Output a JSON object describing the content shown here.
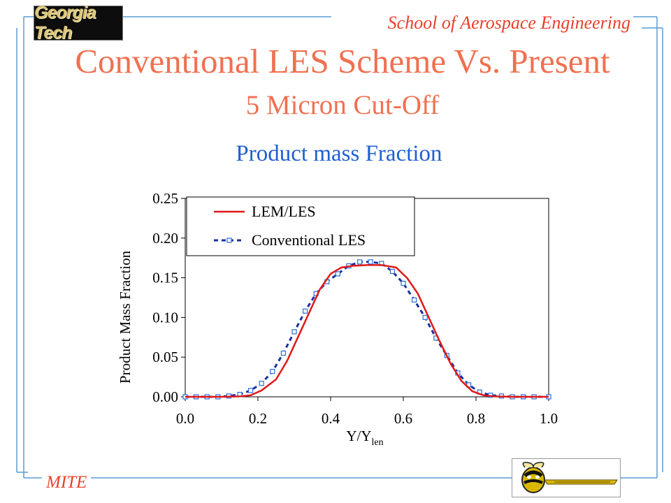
{
  "header": {
    "logo_text": "Georgia Tech",
    "school": "School of Aerospace Engineering"
  },
  "slide": {
    "title": "Conventional LES Scheme Vs. Present",
    "subtitle": "5 Micron Cut-Off",
    "chart_heading": "Product mass Fraction"
  },
  "footer": {
    "mite": "MITE",
    "mascot_icon": "yellow-jacket-logo"
  },
  "colors": {
    "accent": "#e8402a",
    "title": "#f07050",
    "heading_blue": "#1f5fd0",
    "frame_blue": "#5a9bd5",
    "series_lem": "#e01818",
    "series_conv": "#1a2fa0"
  },
  "chart_data": {
    "type": "line",
    "title": "Product mass Fraction",
    "xlabel": "Y/Y",
    "xlabel_sub": "len",
    "ylabel": "Product Mass Fraction",
    "xlim": [
      0,
      1
    ],
    "ylim": [
      0,
      0.25
    ],
    "x_ticks": [
      "0.0",
      "0.2",
      "0.4",
      "0.6",
      "0.8",
      "1.0"
    ],
    "x_tick_values": [
      0,
      0.2,
      0.4,
      0.6,
      0.8,
      1.0
    ],
    "y_ticks": [
      "0.00",
      "0.05",
      "0.10",
      "0.15",
      "0.20",
      "0.25"
    ],
    "y_tick_values": [
      0,
      0.05,
      0.1,
      0.15,
      0.2,
      0.25
    ],
    "grid": false,
    "legend_position": "top-left",
    "series": [
      {
        "name": "LEM/LES",
        "style": "solid",
        "x": [
          0.0,
          0.1,
          0.15,
          0.18,
          0.21,
          0.25,
          0.28,
          0.31,
          0.34,
          0.37,
          0.4,
          0.43,
          0.46,
          0.5,
          0.54,
          0.58,
          0.61,
          0.64,
          0.67,
          0.7,
          0.73,
          0.76,
          0.79,
          0.82,
          0.85,
          0.9,
          1.0
        ],
        "y": [
          0.0,
          0.0,
          0.0005,
          0.002,
          0.008,
          0.022,
          0.045,
          0.075,
          0.105,
          0.135,
          0.155,
          0.163,
          0.165,
          0.166,
          0.166,
          0.163,
          0.15,
          0.13,
          0.1,
          0.07,
          0.042,
          0.02,
          0.007,
          0.002,
          0.0005,
          0.0,
          0.0
        ]
      },
      {
        "name": "Conventional LES",
        "style": "dashed-markers",
        "x": [
          0.0,
          0.03,
          0.06,
          0.09,
          0.12,
          0.15,
          0.18,
          0.21,
          0.24,
          0.27,
          0.3,
          0.33,
          0.36,
          0.39,
          0.42,
          0.45,
          0.48,
          0.51,
          0.54,
          0.57,
          0.6,
          0.63,
          0.66,
          0.69,
          0.72,
          0.75,
          0.78,
          0.81,
          0.84,
          0.87,
          0.9,
          0.93,
          0.96,
          1.0
        ],
        "y": [
          0.0,
          0.0,
          0.0,
          0.0,
          0.001,
          0.003,
          0.008,
          0.017,
          0.032,
          0.055,
          0.082,
          0.108,
          0.13,
          0.145,
          0.155,
          0.165,
          0.17,
          0.17,
          0.168,
          0.158,
          0.143,
          0.122,
          0.1,
          0.074,
          0.052,
          0.03,
          0.015,
          0.006,
          0.002,
          0.001,
          0.0,
          0.0,
          0.0,
          0.0
        ]
      }
    ]
  }
}
